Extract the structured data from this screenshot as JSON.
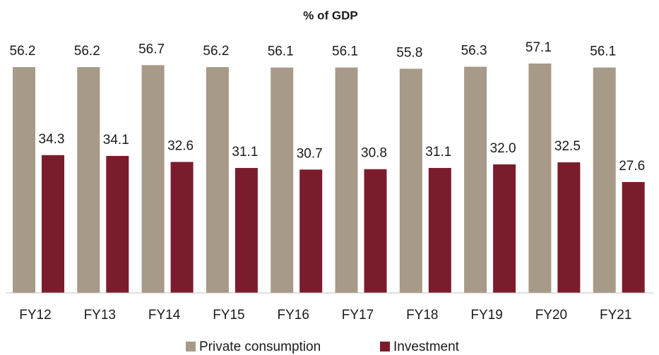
{
  "chart_data": {
    "type": "bar",
    "title": "% of GDP",
    "categories": [
      "FY12",
      "FY13",
      "FY14",
      "FY15",
      "FY16",
      "FY17",
      "FY18",
      "FY19",
      "FY20",
      "FY21"
    ],
    "series": [
      {
        "name": "Private consumption",
        "color": "#a89a88",
        "values": [
          56.2,
          56.2,
          56.7,
          56.2,
          56.1,
          56.1,
          55.8,
          56.3,
          57.1,
          56.1
        ],
        "value_labels": [
          "56.2",
          "56.2",
          "56.7",
          "56.2",
          "56.1",
          "56.1",
          "55.8",
          "56.3",
          "57.1",
          "56.1"
        ]
      },
      {
        "name": "Investment",
        "color": "#7b1c2c",
        "values": [
          34.3,
          34.1,
          32.6,
          31.1,
          30.7,
          30.8,
          31.1,
          32.0,
          32.5,
          27.6
        ],
        "value_labels": [
          "34.3",
          "34.1",
          "32.6",
          "31.1",
          "30.7",
          "30.8",
          "31.1",
          "32.0",
          "32.5",
          "27.6"
        ]
      }
    ],
    "legend": "bottom"
  }
}
